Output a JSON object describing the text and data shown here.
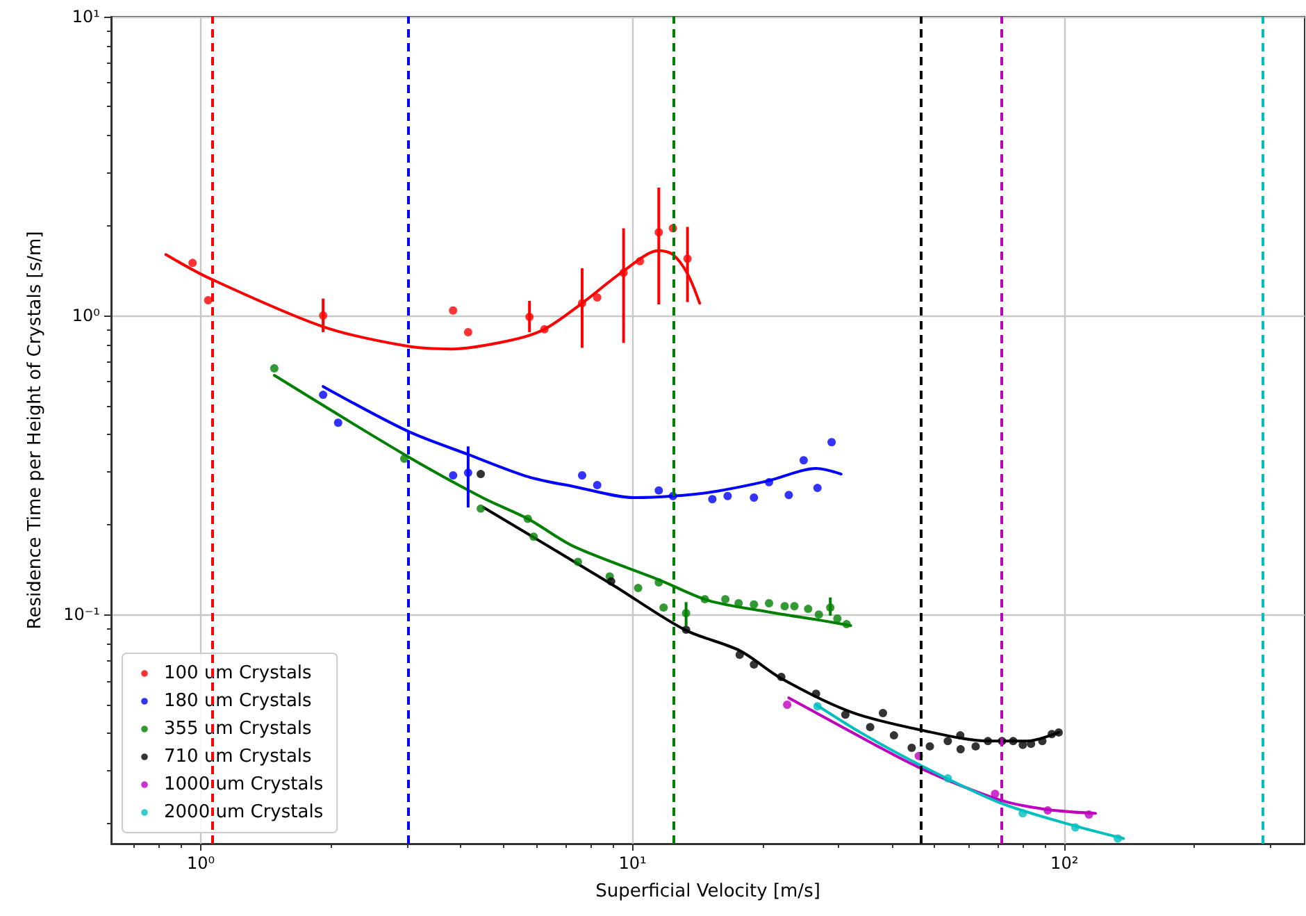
{
  "chart_data": {
    "type": "scatter",
    "xlabel": "Superficial Velocity [m/s]",
    "ylabel": "Residence Time per Height of Crystals [s/m]",
    "log": "xy",
    "grid": true,
    "legend": "bottom left",
    "marker": "circle",
    "xlim": [
      0.62,
      360
    ],
    "ylim": [
      0.0171,
      10
    ],
    "xticks": [
      {
        "value": 1,
        "label": "10⁰"
      },
      {
        "value": 10,
        "label": "10¹"
      },
      {
        "value": 100,
        "label": "10²"
      }
    ],
    "yticks": [
      {
        "value": 0.1,
        "label": "10⁻¹"
      },
      {
        "value": 1,
        "label": "10⁰"
      },
      {
        "value": 10,
        "label": "10¹"
      }
    ],
    "ref_lines": [
      {
        "axis": "x",
        "value": 1.06,
        "color": "#ff0000",
        "line_style": "dashed"
      },
      {
        "axis": "x",
        "value": 3.01,
        "color": "#0000ff",
        "line_style": "dashed"
      },
      {
        "axis": "x",
        "value": 12.4,
        "color": "#008000",
        "line_style": "dashed"
      },
      {
        "axis": "x",
        "value": 46.4,
        "color": "#000000",
        "line_style": "dashed"
      },
      {
        "axis": "x",
        "value": 71.7,
        "color": "#bf00bf",
        "line_style": "dashed"
      },
      {
        "axis": "x",
        "value": 288,
        "color": "#00bfbf",
        "line_style": "dashed"
      }
    ],
    "series": [
      {
        "name": "100 um Crystals",
        "color": "#ff0000",
        "x": [
          0.957,
          1.04,
          1.92,
          3.84,
          4.16,
          5.77,
          6.25,
          7.64,
          8.28,
          9.53,
          10.4,
          11.5,
          12.4,
          13.4
        ],
        "values": [
          1.5,
          1.125,
          1.0,
          1.04,
          0.88,
          0.99,
          0.9,
          1.1,
          1.15,
          1.39,
          1.52,
          1.9,
          1.96,
          1.55
        ],
        "errors": [
          null,
          null,
          [
            0.88,
            1.14
          ],
          null,
          null,
          [
            0.88,
            1.12
          ],
          null,
          [
            0.78,
            1.44
          ],
          null,
          [
            0.81,
            1.96
          ],
          null,
          [
            1.09,
            2.68
          ],
          null,
          [
            1.11,
            1.98
          ]
        ]
      },
      {
        "name": "180 um Crystals",
        "color": "#0000ff",
        "x": [
          1.92,
          2.08,
          3.84,
          4.16,
          7.64,
          8.28,
          11.5,
          12.4,
          15.3,
          16.6,
          19.1,
          20.7,
          23.0,
          24.9,
          26.8,
          28.9
        ],
        "values": [
          0.543,
          0.438,
          0.292,
          0.298,
          0.292,
          0.271,
          0.26,
          0.249,
          0.243,
          0.249,
          0.246,
          0.277,
          0.251,
          0.328,
          0.265,
          0.377
        ],
        "errors": [
          null,
          null,
          null,
          [
            0.228,
            0.365
          ],
          null,
          null,
          null,
          null,
          null,
          null,
          null,
          null,
          null,
          null,
          null,
          null
        ]
      },
      {
        "name": "355 um Crystals",
        "color": "#008000",
        "x": [
          1.48,
          2.96,
          4.45,
          5.72,
          5.9,
          7.47,
          8.85,
          10.3,
          11.5,
          11.8,
          13.3,
          14.7,
          16.4,
          17.6,
          19.1,
          20.7,
          22.5,
          23.7,
          25.5,
          27.0,
          28.7,
          29.8,
          31.3
        ],
        "values": [
          0.666,
          0.332,
          0.226,
          0.209,
          0.182,
          0.15,
          0.134,
          0.1226,
          0.128,
          0.1055,
          0.101,
          0.1125,
          0.1125,
          0.109,
          0.108,
          0.109,
          0.1066,
          0.1066,
          0.1044,
          0.1,
          0.1055,
          0.0969,
          0.0928
        ],
        "errors": [
          null,
          null,
          null,
          null,
          null,
          null,
          null,
          null,
          null,
          null,
          [
            0.0918,
            0.11
          ],
          null,
          null,
          null,
          null,
          null,
          null,
          null,
          null,
          null,
          [
            0.099,
            0.114
          ],
          null,
          null
        ]
      },
      {
        "name": "710 um Crystals",
        "color": "#000000",
        "x": [
          4.45,
          8.92,
          13.3,
          17.7,
          19.1,
          22.1,
          26.6,
          31.1,
          35.5,
          38.0,
          40.3,
          44.3,
          48.8,
          53.7,
          57.4,
          57.5,
          62.3,
          66.5,
          71.7,
          76.1,
          80.1,
          83.7,
          88.9,
          93.5,
          97.0
        ],
        "values": [
          0.295,
          0.129,
          0.0889,
          0.0733,
          0.068,
          0.0618,
          0.0543,
          0.0462,
          0.042,
          0.0468,
          0.0394,
          0.0358,
          0.0362,
          0.0377,
          0.0394,
          0.0354,
          0.0362,
          0.0377,
          0.0377,
          0.0377,
          0.0366,
          0.0369,
          0.0377,
          0.0398,
          0.0403
        ]
      },
      {
        "name": "1000 um Crystals",
        "color": "#bf00bf",
        "x": [
          22.8,
          46.0,
          69.1,
          91.5,
          114
        ],
        "values": [
          0.0499,
          0.0336,
          0.0251,
          0.0221,
          0.0214
        ]
      },
      {
        "name": "2000 um Crystals",
        "color": "#00bfbf",
        "x": [
          26.8,
          53.7,
          80.1,
          106,
          133
        ],
        "values": [
          0.0493,
          0.0283,
          0.0216,
          0.0194,
          0.0178
        ]
      },
      {
        "type": "line",
        "marker": "none",
        "color": "#ff0000",
        "x": [
          0.83,
          1.045,
          1.92,
          3.01,
          3.81,
          5.19,
          6.25,
          7.64,
          9.53,
          11.5,
          12.4,
          13.4,
          14.3
        ],
        "values": [
          1.6,
          1.335,
          0.918,
          0.79,
          0.773,
          0.825,
          0.9,
          1.1,
          1.41,
          1.65,
          1.6,
          1.38,
          1.1
        ]
      },
      {
        "type": "line",
        "marker": "none",
        "color": "#0000ff",
        "x": [
          1.92,
          3.01,
          4.16,
          5.72,
          7.3,
          10.1,
          12.4,
          15.3,
          20.6,
          26.6,
          30.4
        ],
        "values": [
          0.579,
          0.411,
          0.343,
          0.289,
          0.268,
          0.246,
          0.249,
          0.257,
          0.28,
          0.308,
          0.295
        ]
      },
      {
        "type": "line",
        "marker": "none",
        "color": "#008000",
        "x": [
          1.48,
          2.96,
          4.49,
          5.72,
          7.3,
          11.5,
          15.0,
          20.6,
          27.0,
          32.0
        ],
        "values": [
          0.631,
          0.343,
          0.246,
          0.209,
          0.169,
          0.1307,
          0.1113,
          0.102,
          0.0958,
          0.0918
        ]
      },
      {
        "type": "line",
        "marker": "none",
        "color": "#000000",
        "x": [
          4.52,
          8.92,
          13.2,
          17.7,
          22.1,
          32.0,
          46.4,
          67.1,
          81.9,
          97.0
        ],
        "values": [
          0.228,
          0.1265,
          0.0889,
          0.0757,
          0.0611,
          0.0472,
          0.0411,
          0.0377,
          0.0377,
          0.0403
        ]
      },
      {
        "type": "line",
        "marker": "none",
        "color": "#bf00bf",
        "x": [
          23.0,
          30.6,
          46.0,
          70.6,
          90.2,
          118
        ],
        "values": [
          0.0526,
          0.042,
          0.0308,
          0.024,
          0.0223,
          0.0216
        ]
      },
      {
        "type": "line",
        "marker": "none",
        "color": "#00bfbf",
        "x": [
          26.6,
          33.7,
          46.0,
          70.6,
          102,
          137
        ],
        "values": [
          0.0499,
          0.0403,
          0.0315,
          0.0235,
          0.0199,
          0.0178
        ]
      }
    ]
  }
}
